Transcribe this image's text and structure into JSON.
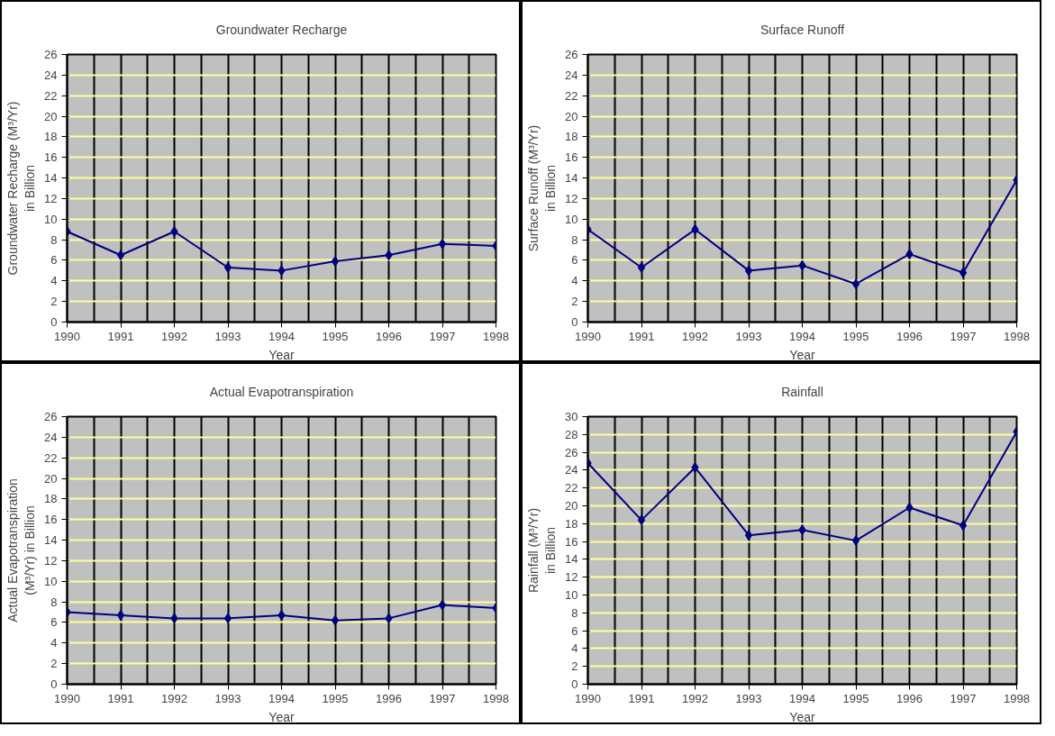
{
  "chart_data": [
    {
      "type": "line",
      "title": "Groundwater Recharge",
      "xlabel": "Year",
      "ylabel": "Groundwater Recharge (M³/Yr)\nin Billion",
      "x": [
        1990,
        1991,
        1992,
        1993,
        1994,
        1995,
        1996,
        1997,
        1998
      ],
      "xlim": [
        1990,
        1998
      ],
      "xticks": [
        1990,
        1991,
        1992,
        1993,
        1994,
        1995,
        1996,
        1997,
        1998
      ],
      "ylim": [
        0,
        26
      ],
      "yticks": [
        0,
        2,
        4,
        6,
        8,
        10,
        12,
        14,
        16,
        18,
        20,
        22,
        24,
        26
      ],
      "grid": true,
      "marker": "diamond",
      "series": [
        {
          "color": "#000080",
          "values": [
            8.8,
            6.5,
            8.8,
            5.3,
            5.0,
            5.9,
            6.5,
            7.6,
            7.4
          ]
        }
      ]
    },
    {
      "type": "line",
      "title": "Surface Runoff",
      "xlabel": "Year",
      "ylabel": "Surface Runoff (M³/Yr)\nin Billion",
      "x": [
        1990,
        1991,
        1992,
        1993,
        1994,
        1995,
        1996,
        1997,
        1998
      ],
      "xlim": [
        1990,
        1998
      ],
      "xticks": [
        1990,
        1991,
        1992,
        1993,
        1994,
        1995,
        1996,
        1997,
        1998
      ],
      "ylim": [
        0,
        26
      ],
      "yticks": [
        0,
        2,
        4,
        6,
        8,
        10,
        12,
        14,
        16,
        18,
        20,
        22,
        24,
        26
      ],
      "grid": true,
      "marker": "diamond",
      "series": [
        {
          "color": "#000080",
          "values": [
            9.0,
            5.3,
            9.0,
            5.0,
            5.5,
            3.7,
            6.6,
            4.8,
            13.8
          ]
        }
      ]
    },
    {
      "type": "line",
      "title": "Actual Evapotranspiration",
      "xlabel": "Year",
      "ylabel": "Actual Evapotranspiration\n(M³/Yr) in Billion",
      "x": [
        1990,
        1991,
        1992,
        1993,
        1994,
        1995,
        1996,
        1997,
        1998
      ],
      "xlim": [
        1990,
        1998
      ],
      "xticks": [
        1990,
        1991,
        1992,
        1993,
        1994,
        1995,
        1996,
        1997,
        1998
      ],
      "ylim": [
        0,
        26
      ],
      "yticks": [
        0,
        2,
        4,
        6,
        8,
        10,
        12,
        14,
        16,
        18,
        20,
        22,
        24,
        26
      ],
      "grid": true,
      "marker": "diamond",
      "series": [
        {
          "color": "#000080",
          "values": [
            7.0,
            6.7,
            6.4,
            6.4,
            6.7,
            6.2,
            6.4,
            7.7,
            7.4
          ]
        }
      ]
    },
    {
      "type": "line",
      "title": "Rainfall",
      "xlabel": "Year",
      "ylabel": "Rainfall (M³/Yr)\nin Billion",
      "x": [
        1990,
        1991,
        1992,
        1993,
        1994,
        1995,
        1996,
        1997,
        1998
      ],
      "xlim": [
        1990,
        1998
      ],
      "xticks": [
        1990,
        1991,
        1992,
        1993,
        1994,
        1995,
        1996,
        1997,
        1998
      ],
      "ylim": [
        0,
        30
      ],
      "yticks": [
        0,
        2,
        4,
        6,
        8,
        10,
        12,
        14,
        16,
        18,
        20,
        22,
        24,
        26,
        28,
        30
      ],
      "grid": true,
      "marker": "diamond",
      "series": [
        {
          "color": "#000080",
          "values": [
            24.8,
            18.4,
            24.3,
            16.7,
            17.3,
            16.1,
            19.8,
            17.8,
            28.3
          ]
        }
      ]
    }
  ]
}
